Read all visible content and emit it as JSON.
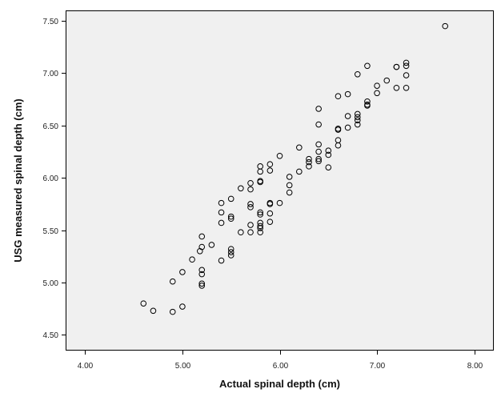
{
  "chart_data": {
    "type": "scatter",
    "title": "",
    "xlabel": "Actual spinal depth (cm)",
    "ylabel": "USG measured spinal depth (cm)",
    "xlim": [
      3.8,
      8.2
    ],
    "ylim": [
      4.35,
      7.6
    ],
    "x_ticks": [
      "4.00",
      "5.00",
      "6.00",
      "7.00",
      "8.00"
    ],
    "y_ticks": [
      "4.50",
      "5.00",
      "5.50",
      "6.00",
      "6.50",
      "7.00",
      "7.50"
    ],
    "grid": false,
    "colors": {
      "plot_bg": "#f0f0f0",
      "marker": "#000000",
      "frame": "#000000"
    },
    "marker": "hollow-circle",
    "points": [
      [
        4.6,
        4.8
      ],
      [
        4.7,
        4.73
      ],
      [
        4.9,
        4.72
      ],
      [
        4.9,
        5.01
      ],
      [
        5.0,
        4.77
      ],
      [
        5.0,
        5.1
      ],
      [
        5.1,
        5.22
      ],
      [
        5.2,
        5.44
      ],
      [
        5.2,
        5.34
      ],
      [
        5.2,
        5.12
      ],
      [
        5.2,
        5.08
      ],
      [
        5.2,
        4.99
      ],
      [
        5.2,
        4.97
      ],
      [
        5.18,
        5.3
      ],
      [
        5.3,
        5.36
      ],
      [
        5.4,
        5.76
      ],
      [
        5.4,
        5.67
      ],
      [
        5.4,
        5.57
      ],
      [
        5.4,
        5.21
      ],
      [
        5.5,
        5.8
      ],
      [
        5.5,
        5.63
      ],
      [
        5.5,
        5.61
      ],
      [
        5.5,
        5.32
      ],
      [
        5.5,
        5.29
      ],
      [
        5.5,
        5.26
      ],
      [
        5.6,
        5.9
      ],
      [
        5.6,
        5.48
      ],
      [
        5.7,
        5.95
      ],
      [
        5.7,
        5.89
      ],
      [
        5.7,
        5.75
      ],
      [
        5.7,
        5.72
      ],
      [
        5.7,
        5.55
      ],
      [
        5.7,
        5.48
      ],
      [
        5.8,
        6.11
      ],
      [
        5.8,
        6.06
      ],
      [
        5.8,
        5.97
      ],
      [
        5.8,
        5.96
      ],
      [
        5.8,
        5.67
      ],
      [
        5.8,
        5.65
      ],
      [
        5.8,
        5.57
      ],
      [
        5.8,
        5.54
      ],
      [
        5.8,
        5.52
      ],
      [
        5.8,
        5.48
      ],
      [
        5.9,
        6.13
      ],
      [
        5.9,
        6.07
      ],
      [
        5.9,
        5.76
      ],
      [
        5.9,
        5.75
      ],
      [
        5.9,
        5.66
      ],
      [
        5.9,
        5.58
      ],
      [
        6.0,
        6.21
      ],
      [
        6.0,
        5.76
      ],
      [
        6.1,
        6.01
      ],
      [
        6.1,
        5.93
      ],
      [
        6.1,
        5.86
      ],
      [
        6.2,
        6.29
      ],
      [
        6.2,
        6.06
      ],
      [
        6.3,
        6.18
      ],
      [
        6.3,
        6.15
      ],
      [
        6.3,
        6.11
      ],
      [
        6.4,
        6.66
      ],
      [
        6.4,
        6.51
      ],
      [
        6.4,
        6.32
      ],
      [
        6.4,
        6.25
      ],
      [
        6.4,
        6.18
      ],
      [
        6.4,
        6.16
      ],
      [
        6.5,
        6.26
      ],
      [
        6.5,
        6.22
      ],
      [
        6.5,
        6.1
      ],
      [
        6.6,
        6.78
      ],
      [
        6.6,
        6.47
      ],
      [
        6.6,
        6.46
      ],
      [
        6.6,
        6.36
      ],
      [
        6.6,
        6.31
      ],
      [
        6.7,
        6.8
      ],
      [
        6.7,
        6.59
      ],
      [
        6.7,
        6.48
      ],
      [
        6.8,
        6.99
      ],
      [
        6.8,
        6.61
      ],
      [
        6.8,
        6.58
      ],
      [
        6.8,
        6.55
      ],
      [
        6.8,
        6.51
      ],
      [
        6.9,
        7.07
      ],
      [
        6.9,
        6.73
      ],
      [
        6.9,
        6.7
      ],
      [
        6.9,
        6.69
      ],
      [
        7.0,
        6.88
      ],
      [
        7.0,
        6.81
      ],
      [
        7.1,
        6.93
      ],
      [
        7.2,
        7.06
      ],
      [
        7.2,
        7.06
      ],
      [
        7.2,
        6.86
      ],
      [
        7.3,
        7.1
      ],
      [
        7.3,
        7.07
      ],
      [
        7.3,
        6.98
      ],
      [
        7.3,
        6.86
      ],
      [
        7.7,
        7.45
      ]
    ]
  }
}
